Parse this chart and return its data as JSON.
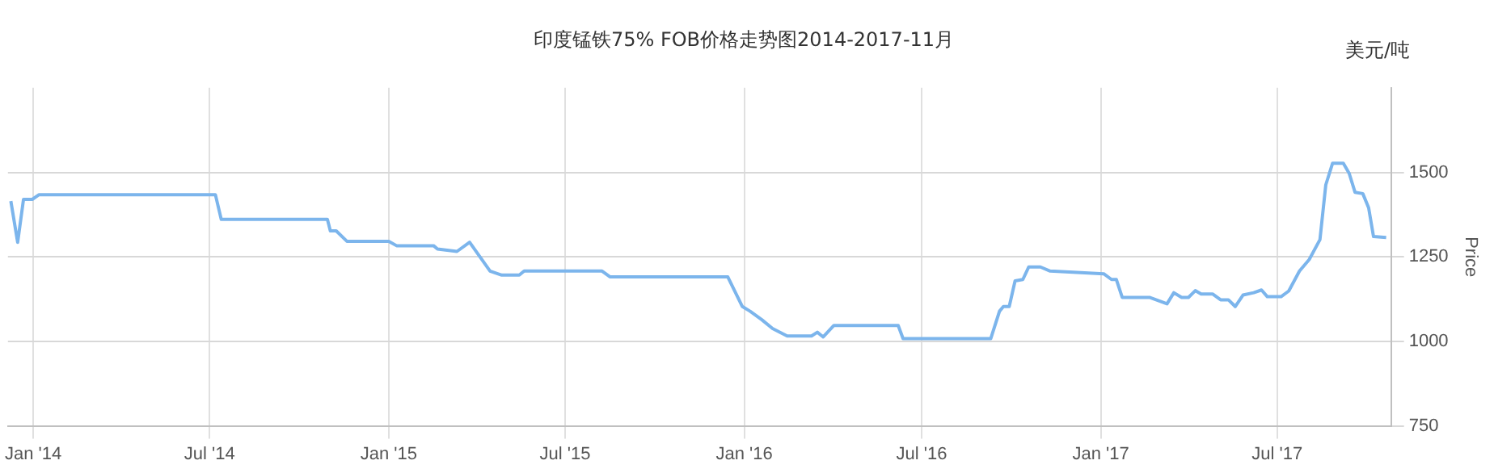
{
  "chart_data": {
    "type": "line",
    "title": "印度锰铁75% FOB价格走势图2014-2017-11月",
    "ylabel": "Price",
    "annotations": [
      "美元/吨"
    ],
    "x": [
      "2013-12-09",
      "2013-12-16",
      "2013-12-22",
      "2013-12-31",
      "2014-01-07",
      "2014-07-07",
      "2014-07-13",
      "2014-10-30",
      "2014-11-02",
      "2014-11-08",
      "2014-11-19",
      "2015-01-01",
      "2015-01-09",
      "2015-02-16",
      "2015-02-20",
      "2015-03-12",
      "2015-03-25",
      "2015-04-15",
      "2015-04-27",
      "2015-05-15",
      "2015-05-20",
      "2015-08-08",
      "2015-08-16",
      "2015-12-15",
      "2015-12-30",
      "2016-01-07",
      "2016-01-19",
      "2016-01-30",
      "2016-02-14",
      "2016-03-10",
      "2016-03-16",
      "2016-03-22",
      "2016-04-02",
      "2016-06-07",
      "2016-06-12",
      "2016-09-10",
      "2016-09-19",
      "2016-09-23",
      "2016-09-29",
      "2016-10-05",
      "2016-10-13",
      "2016-10-19",
      "2016-10-31",
      "2016-11-10",
      "2017-01-04",
      "2017-01-12",
      "2017-01-17",
      "2017-01-23",
      "2017-02-20",
      "2017-03-10",
      "2017-03-17",
      "2017-03-25",
      "2017-04-01",
      "2017-04-08",
      "2017-04-14",
      "2017-04-26",
      "2017-05-04",
      "2017-05-12",
      "2017-05-19",
      "2017-05-27",
      "2017-06-07",
      "2017-06-15",
      "2017-06-21",
      "2017-07-05",
      "2017-07-13",
      "2017-07-24",
      "2017-08-03",
      "2017-08-14",
      "2017-08-20",
      "2017-08-27",
      "2017-09-07",
      "2017-09-13",
      "2017-09-19",
      "2017-09-27",
      "2017-10-03",
      "2017-10-08",
      "2017-10-21"
    ],
    "series": [
      {
        "color": "#7cb5ec",
        "values": [
          1415,
          1293,
          1420,
          1420,
          1434,
          1434,
          1361,
          1361,
          1327,
          1327,
          1296,
          1296,
          1283,
          1283,
          1273,
          1266,
          1293,
          1208,
          1196,
          1196,
          1208,
          1208,
          1191,
          1191,
          1103,
          1089,
          1064,
          1038,
          1016,
          1016,
          1027,
          1013,
          1047,
          1047,
          1008,
          1008,
          1089,
          1103,
          1103,
          1179,
          1183,
          1220,
          1220,
          1208,
          1200,
          1183,
          1183,
          1130,
          1130,
          1111,
          1144,
          1130,
          1130,
          1150,
          1140,
          1140,
          1123,
          1123,
          1103,
          1137,
          1144,
          1152,
          1132,
          1132,
          1149,
          1208,
          1242,
          1301,
          1463,
          1527,
          1527,
          1497,
          1441,
          1437,
          1395,
          1310,
          1307
        ]
      }
    ],
    "xlim": [
      "2013-12-06",
      "2017-10-26"
    ],
    "xticks": [
      {
        "value": "2014-01-01",
        "label": "Jan '14"
      },
      {
        "value": "2014-07-01",
        "label": "Jul '14"
      },
      {
        "value": "2015-01-01",
        "label": "Jan '15"
      },
      {
        "value": "2015-07-01",
        "label": "Jul '15"
      },
      {
        "value": "2016-01-01",
        "label": "Jan '16"
      },
      {
        "value": "2016-07-01",
        "label": "Jul '16"
      },
      {
        "value": "2017-01-01",
        "label": "Jan '17"
      },
      {
        "value": "2017-07-01",
        "label": "Jul '17"
      }
    ],
    "ylim": [
      750,
      1750
    ],
    "yticks": [
      750,
      1000,
      1250,
      1500
    ],
    "grid": true,
    "legend": false,
    "marker": "none",
    "line_style": "solid"
  }
}
